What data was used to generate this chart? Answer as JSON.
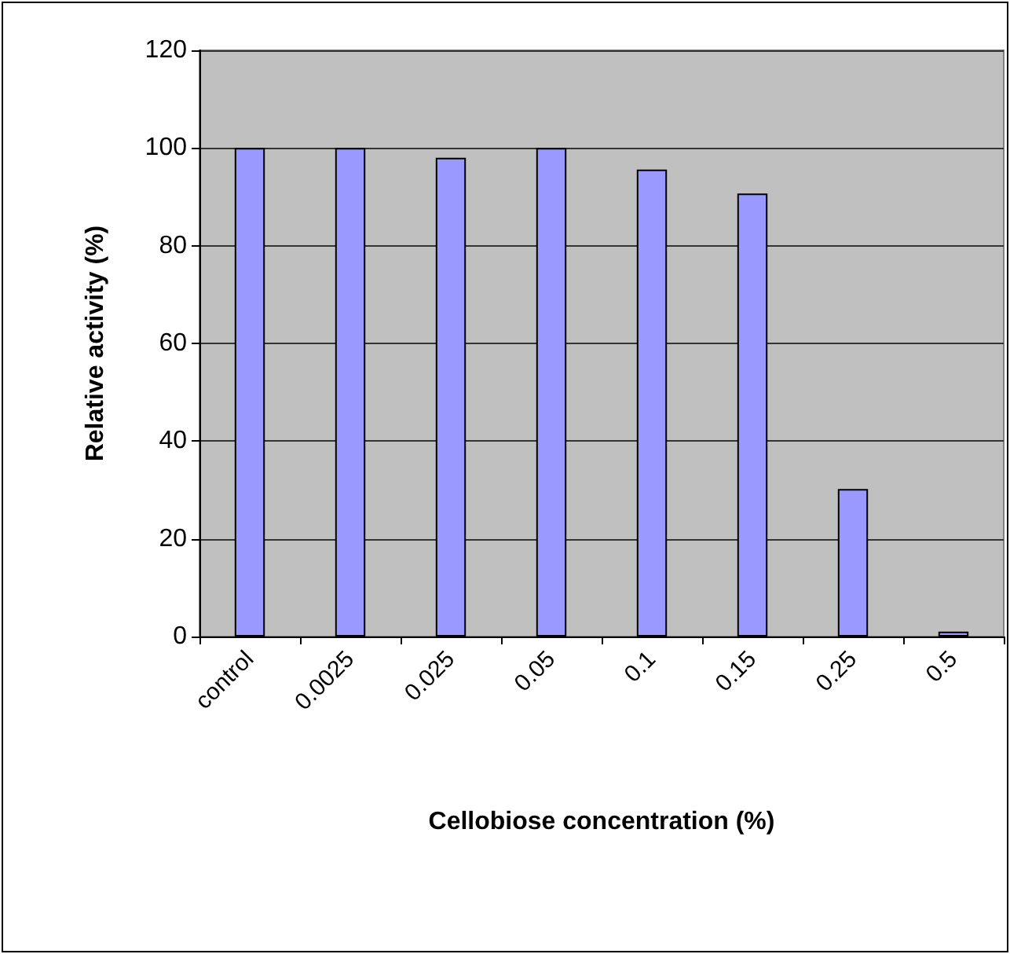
{
  "chart_data": {
    "type": "bar",
    "xlabel": "Cellobiose concentration (%)",
    "ylabel": "Relative activity (%)",
    "categories": [
      "control",
      "0.0025",
      "0.025",
      "0.05",
      "0.1",
      "0.15",
      "0.25",
      "0.5"
    ],
    "values": [
      100,
      100,
      98,
      100,
      95.6,
      90.7,
      30.2,
      1
    ],
    "color": "#9999ff",
    "ylim": [
      0,
      120
    ],
    "yticks": [
      0,
      20,
      40,
      60,
      80,
      100,
      120
    ],
    "grid": "y"
  }
}
